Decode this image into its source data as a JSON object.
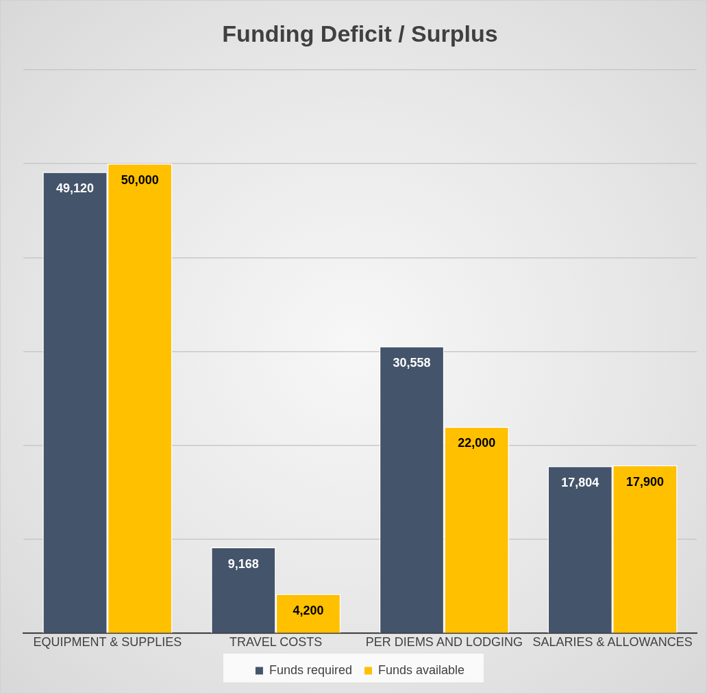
{
  "chart_data": {
    "type": "bar",
    "title": "Funding Deficit / Surplus",
    "categories": [
      "EQUIPMENT & SUPPLIES",
      "TRAVEL COSTS",
      "PER DIEMS AND LODGING",
      "SALARIES & ALLOWANCES"
    ],
    "series": [
      {
        "name": "Funds required",
        "color": "#44546a",
        "values": [
          49120,
          9168,
          30558,
          17804
        ],
        "value_labels": [
          "49,120",
          "9,168",
          "30,558",
          "17,804"
        ]
      },
      {
        "name": "Funds available",
        "color": "#ffc000",
        "values": [
          50000,
          4200,
          22000,
          17900
        ],
        "value_labels": [
          "50,000",
          "4,200",
          "22,000",
          "17,900"
        ]
      }
    ],
    "tick_labels": "x",
    "grid": "y",
    "legend": "bottom"
  }
}
